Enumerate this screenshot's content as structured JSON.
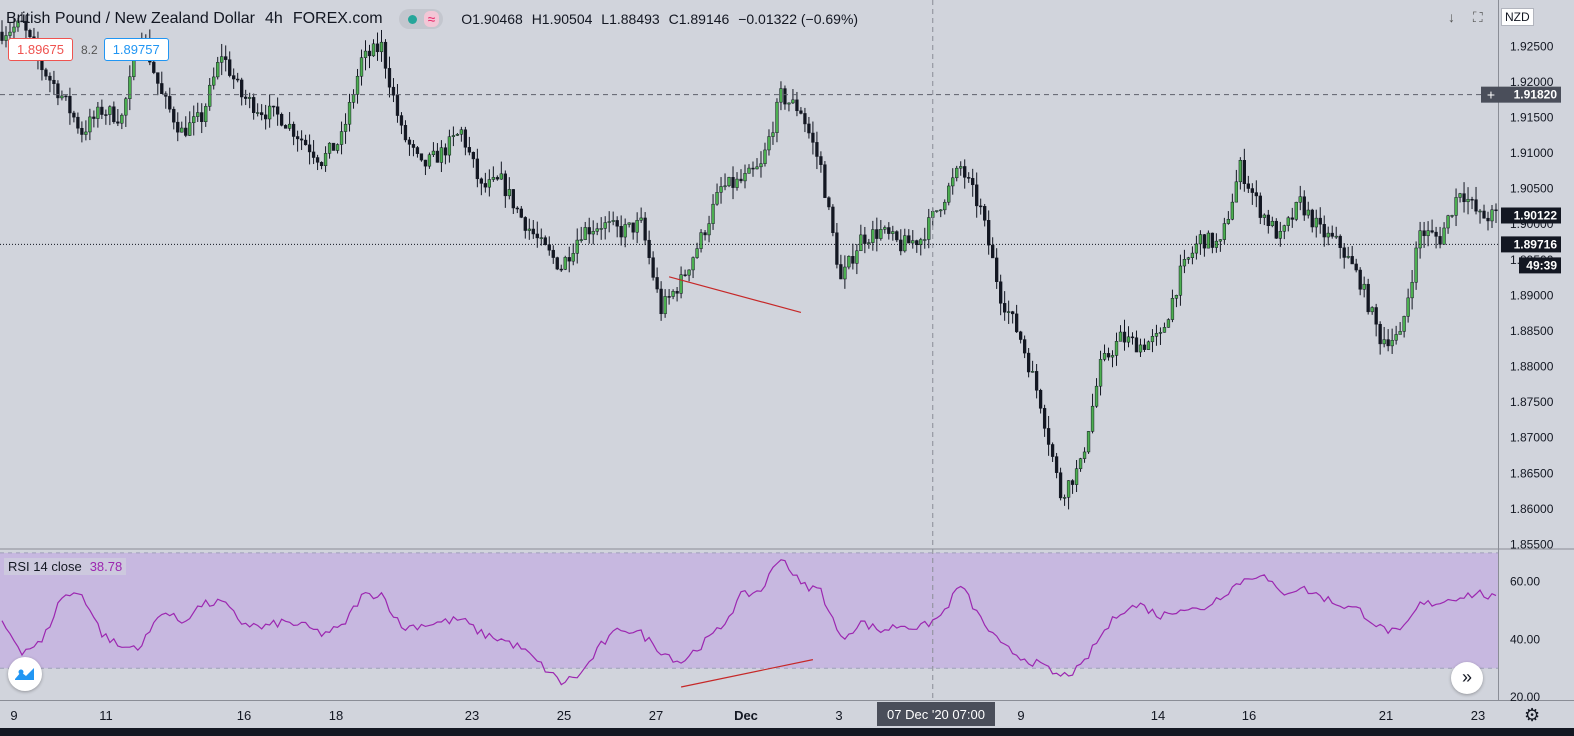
{
  "header": {
    "symbol": "British Pound / New Zealand Dollar",
    "timeframe": "4h",
    "exchange": "FOREX.com",
    "wave_glyph": "≈",
    "ohlc": {
      "open": "O1.90468",
      "high": "H1.90504",
      "low": "L1.88493",
      "close": "C1.89146",
      "change": "−0.01322 (−0.69%)"
    }
  },
  "trade": {
    "bid": "1.89675",
    "spread": "8.2",
    "ask": "1.89757"
  },
  "toolbar": {
    "download_glyph": "↓",
    "screen_glyph": "⛶",
    "currency": "NZD",
    "forward_glyph": "»",
    "settings_glyph": "⚙"
  },
  "colors": {
    "background": "#d1d4dc",
    "up": "#4caf50",
    "down": "#131722",
    "rsi_line": "#9c27b0",
    "rsi_band": "#c7b8e0",
    "trendline": "#c62828"
  },
  "chart_data": [
    {
      "type": "candlestick",
      "y_ticks": [
        "1.92500",
        "1.92000",
        "1.91500",
        "1.91000",
        "1.90500",
        "1.90000",
        "1.89500",
        "1.89000",
        "1.88500",
        "1.88000",
        "1.87500",
        "1.87000",
        "1.86500",
        "1.86000",
        "1.85500"
      ],
      "ylim": [
        1.8545,
        1.9315
      ],
      "x_tick_labels": [
        "9",
        "11",
        "16",
        "18",
        "23",
        "25",
        "27",
        "Dec",
        "3",
        "9",
        "14",
        "16",
        "21",
        "23"
      ],
      "price_labels": {
        "crosshair": "1.91820",
        "last": "1.90122",
        "bid_line": "1.89716",
        "countdown": "49:39"
      },
      "crosshair_time": "07 Dec '20   07:00",
      "anchors": [
        [
          0,
          1.927
        ],
        [
          5,
          1.928
        ],
        [
          10,
          1.922
        ],
        [
          15,
          1.918
        ],
        [
          20,
          1.913
        ],
        [
          25,
          1.916
        ],
        [
          30,
          1.915
        ],
        [
          35,
          1.927
        ],
        [
          40,
          1.918
        ],
        [
          45,
          1.913
        ],
        [
          50,
          1.915
        ],
        [
          55,
          1.924
        ],
        [
          60,
          1.918
        ],
        [
          65,
          1.916
        ],
        [
          70,
          1.915
        ],
        [
          75,
          1.912
        ],
        [
          80,
          1.909
        ],
        [
          85,
          1.912
        ],
        [
          90,
          1.923
        ],
        [
          95,
          1.925
        ],
        [
          100,
          1.913
        ],
        [
          105,
          1.908
        ],
        [
          110,
          1.91
        ],
        [
          115,
          1.913
        ],
        [
          120,
          1.905
        ],
        [
          125,
          1.906
        ],
        [
          130,
          1.901
        ],
        [
          135,
          1.897
        ],
        [
          140,
          1.894
        ],
        [
          145,
          1.899
        ],
        [
          150,
          1.9
        ],
        [
          155,
          1.899
        ],
        [
          160,
          1.9
        ],
        [
          165,
          1.888
        ],
        [
          170,
          1.892
        ],
        [
          175,
          1.898
        ],
        [
          180,
          1.905
        ],
        [
          185,
          1.906
        ],
        [
          190,
          1.908
        ],
        [
          195,
          1.918
        ],
        [
          200,
          1.916
        ],
        [
          205,
          1.908
        ],
        [
          210,
          1.892
        ],
        [
          215,
          1.898
        ],
        [
          220,
          1.899
        ],
        [
          225,
          1.897
        ],
        [
          230,
          1.898
        ],
        [
          235,
          1.903
        ],
        [
          240,
          1.908
        ],
        [
          245,
          1.902
        ],
        [
          250,
          1.89
        ],
        [
          255,
          1.884
        ],
        [
          260,
          1.875
        ],
        [
          265,
          1.862
        ],
        [
          270,
          1.866
        ],
        [
          275,
          1.88
        ],
        [
          280,
          1.884
        ],
        [
          285,
          1.883
        ],
        [
          290,
          1.884
        ],
        [
          295,
          1.893
        ],
        [
          300,
          1.898
        ],
        [
          305,
          1.897
        ],
        [
          310,
          1.908
        ],
        [
          315,
          1.902
        ],
        [
          320,
          1.898
        ],
        [
          325,
          1.903
        ],
        [
          330,
          1.899
        ],
        [
          335,
          1.897
        ],
        [
          340,
          1.892
        ],
        [
          345,
          1.884
        ],
        [
          350,
          1.884
        ],
        [
          355,
          1.899
        ],
        [
          360,
          1.898
        ],
        [
          365,
          1.905
        ],
        [
          370,
          1.901
        ],
        [
          374,
          1.9012
        ]
      ]
    },
    {
      "type": "line",
      "title": "RSI 14 close",
      "value": "38.78",
      "y_ticks": [
        "60.00",
        "40.00",
        "20.00"
      ],
      "ylim": [
        19,
        71
      ],
      "band": [
        30,
        70
      ],
      "anchors": [
        [
          0,
          46
        ],
        [
          5,
          36
        ],
        [
          10,
          39
        ],
        [
          15,
          55
        ],
        [
          20,
          56
        ],
        [
          25,
          42
        ],
        [
          30,
          37
        ],
        [
          35,
          38
        ],
        [
          40,
          50
        ],
        [
          45,
          46
        ],
        [
          50,
          52
        ],
        [
          55,
          53
        ],
        [
          60,
          46
        ],
        [
          65,
          44
        ],
        [
          70,
          46
        ],
        [
          75,
          45
        ],
        [
          80,
          42
        ],
        [
          85,
          44
        ],
        [
          90,
          55
        ],
        [
          95,
          56
        ],
        [
          100,
          44
        ],
        [
          105,
          45
        ],
        [
          110,
          46
        ],
        [
          115,
          47
        ],
        [
          120,
          42
        ],
        [
          125,
          40
        ],
        [
          130,
          37
        ],
        [
          135,
          31
        ],
        [
          140,
          25
        ],
        [
          145,
          28
        ],
        [
          150,
          38
        ],
        [
          155,
          44
        ],
        [
          160,
          42
        ],
        [
          165,
          36
        ],
        [
          170,
          32
        ],
        [
          175,
          38
        ],
        [
          180,
          44
        ],
        [
          185,
          55
        ],
        [
          190,
          57
        ],
        [
          195,
          69
        ],
        [
          200,
          59
        ],
        [
          205,
          57
        ],
        [
          210,
          40
        ],
        [
          215,
          46
        ],
        [
          220,
          43
        ],
        [
          225,
          45
        ],
        [
          230,
          44
        ],
        [
          235,
          48
        ],
        [
          240,
          59
        ],
        [
          245,
          47
        ],
        [
          250,
          38
        ],
        [
          255,
          34
        ],
        [
          260,
          31
        ],
        [
          265,
          27
        ],
        [
          270,
          30
        ],
        [
          275,
          41
        ],
        [
          280,
          50
        ],
        [
          285,
          52
        ],
        [
          290,
          48
        ],
        [
          295,
          51
        ],
        [
          300,
          50
        ],
        [
          305,
          55
        ],
        [
          310,
          60
        ],
        [
          315,
          63
        ],
        [
          320,
          56
        ],
        [
          325,
          58
        ],
        [
          330,
          55
        ],
        [
          335,
          52
        ],
        [
          340,
          50
        ],
        [
          345,
          44
        ],
        [
          350,
          42
        ],
        [
          355,
          52
        ],
        [
          360,
          53
        ],
        [
          365,
          55
        ],
        [
          370,
          56
        ],
        [
          374,
          54
        ]
      ]
    }
  ]
}
